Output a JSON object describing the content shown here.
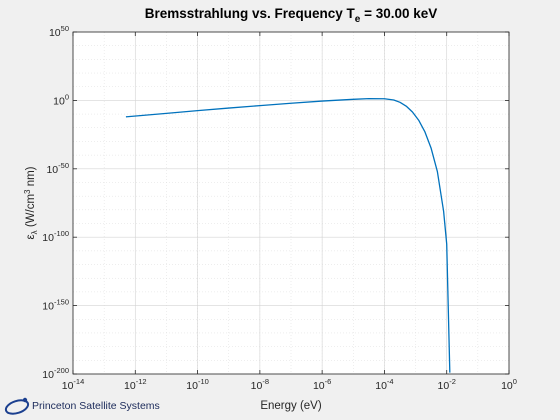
{
  "chart_data": {
    "type": "line",
    "title": {
      "main": "Bremsstrahlung vs. Frequency T",
      "subscript": "e",
      "suffix": " = 30.00 keV"
    },
    "xlabel": "Energy (eV)",
    "ylabel": {
      "symbol": "ε",
      "subscript": "λ",
      "unit_prefix": " (W/cm",
      "unit_sup": "3",
      "unit_suffix": " nm)"
    },
    "x_scale": "log",
    "y_scale": "log",
    "xlim": [
      1e-14,
      1
    ],
    "ylim": [
      1e-200,
      1e+50
    ],
    "x_ticks": [
      {
        "base": "10",
        "exp": "-14"
      },
      {
        "base": "10",
        "exp": "-12"
      },
      {
        "base": "10",
        "exp": "-10"
      },
      {
        "base": "10",
        "exp": "-8"
      },
      {
        "base": "10",
        "exp": "-6"
      },
      {
        "base": "10",
        "exp": "-4"
      },
      {
        "base": "10",
        "exp": "-2"
      },
      {
        "base": "10",
        "exp": "0"
      }
    ],
    "y_ticks": [
      {
        "base": "10",
        "exp": "-200"
      },
      {
        "base": "10",
        "exp": "-150"
      },
      {
        "base": "10",
        "exp": "-100"
      },
      {
        "base": "10",
        "exp": "-50"
      },
      {
        "base": "10",
        "exp": "0"
      },
      {
        "base": "10",
        "exp": "50"
      }
    ],
    "grid": true,
    "minor_grid": true,
    "line_color": "#0072bd",
    "series_log10": {
      "x": [
        -12.3,
        -11,
        -10,
        -9,
        -8,
        -7,
        -6,
        -5,
        -4.5,
        -4,
        -3.7,
        -3.5,
        -3.3,
        -3.1,
        -2.9,
        -2.7,
        -2.5,
        -2.3,
        -2.1,
        -2.0,
        -1.9
      ],
      "y": [
        -12,
        -9.5,
        -7.5,
        -5.6,
        -3.8,
        -2.1,
        -0.5,
        0.8,
        1.3,
        1.2,
        0.3,
        -1.4,
        -4.2,
        -8.5,
        -14.5,
        -23,
        -35,
        -52,
        -81,
        -105,
        -199
      ]
    }
  },
  "footer": {
    "logo_text": "Princeton Satellite Systems"
  }
}
